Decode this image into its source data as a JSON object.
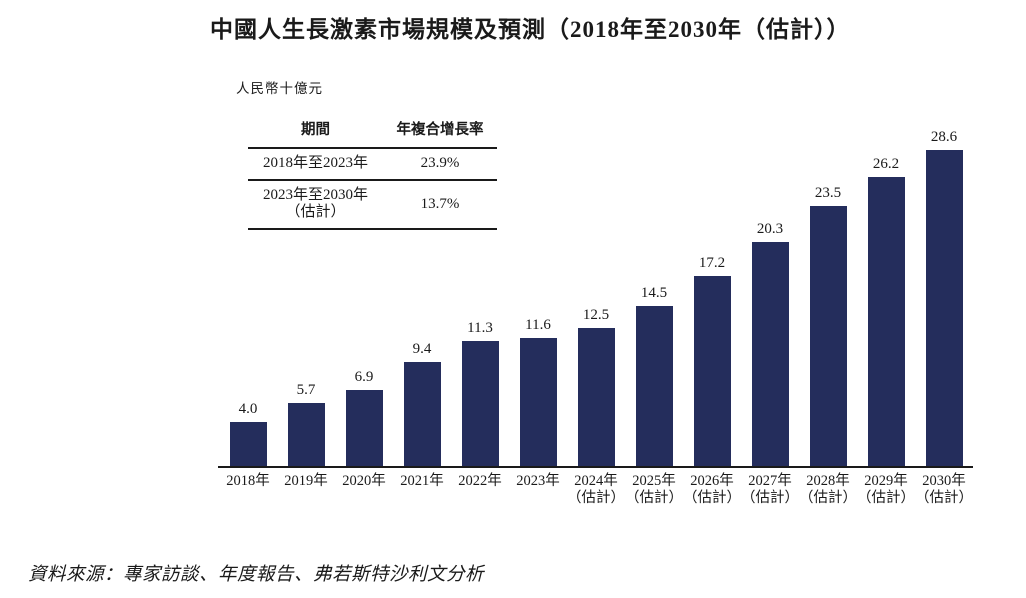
{
  "chart_data": {
    "type": "bar",
    "title": "中國人生長激素市場規模及預測（2018年至2030年（估計））",
    "unit_label": "人民幣十億元",
    "categories": [
      {
        "label": "2018年",
        "sublabel": ""
      },
      {
        "label": "2019年",
        "sublabel": ""
      },
      {
        "label": "2020年",
        "sublabel": ""
      },
      {
        "label": "2021年",
        "sublabel": ""
      },
      {
        "label": "2022年",
        "sublabel": ""
      },
      {
        "label": "2023年",
        "sublabel": ""
      },
      {
        "label": "2024年",
        "sublabel": "（估計）"
      },
      {
        "label": "2025年",
        "sublabel": "（估計）"
      },
      {
        "label": "2026年",
        "sublabel": "（估計）"
      },
      {
        "label": "2027年",
        "sublabel": "（估計）"
      },
      {
        "label": "2028年",
        "sublabel": "（估計）"
      },
      {
        "label": "2029年",
        "sublabel": "（估計）"
      },
      {
        "label": "2030年",
        "sublabel": "（估計）"
      }
    ],
    "values": [
      4.0,
      5.7,
      6.9,
      9.4,
      11.3,
      11.6,
      12.5,
      14.5,
      17.2,
      20.3,
      23.5,
      26.2,
      28.6
    ],
    "xlabel": "",
    "ylabel": "人民幣十億元",
    "ylim": [
      0,
      30
    ],
    "bar_color": "#242d5c",
    "grid": false,
    "legend": "none"
  },
  "cagr_table": {
    "headers": [
      "期間",
      "年複合增長率"
    ],
    "rows": [
      {
        "period": "2018年至2023年",
        "period_note": "",
        "cagr": "23.9%"
      },
      {
        "period": "2023年至2030年",
        "period_note": "（估計）",
        "cagr": "13.7%"
      }
    ]
  },
  "source": "資料來源：專家訪談、年度報告、弗若斯特沙利文分析"
}
